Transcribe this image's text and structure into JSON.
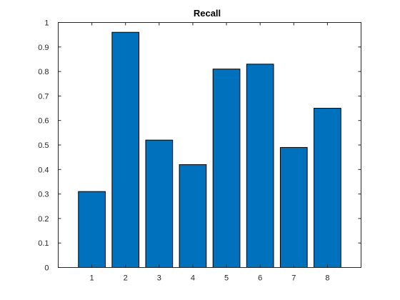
{
  "chart_data": {
    "type": "bar",
    "title": "Recall",
    "xlabel": "",
    "ylabel": "",
    "categories": [
      "1",
      "2",
      "3",
      "4",
      "5",
      "6",
      "7",
      "8"
    ],
    "values": [
      0.31,
      0.96,
      0.52,
      0.42,
      0.81,
      0.83,
      0.49,
      0.65
    ],
    "xlim": [
      0,
      9
    ],
    "ylim": [
      0,
      1
    ],
    "yticks": [
      0,
      0.1,
      0.2,
      0.3,
      0.4,
      0.5,
      0.6,
      0.7,
      0.8,
      0.9,
      1
    ],
    "ytick_labels": [
      "0",
      "0.1",
      "0.2",
      "0.3",
      "0.4",
      "0.5",
      "0.6",
      "0.7",
      "0.8",
      "0.9",
      "1"
    ],
    "grid": false,
    "legend": "none",
    "bar_color": "#0072BD",
    "bar_edge_color": "#000000"
  }
}
